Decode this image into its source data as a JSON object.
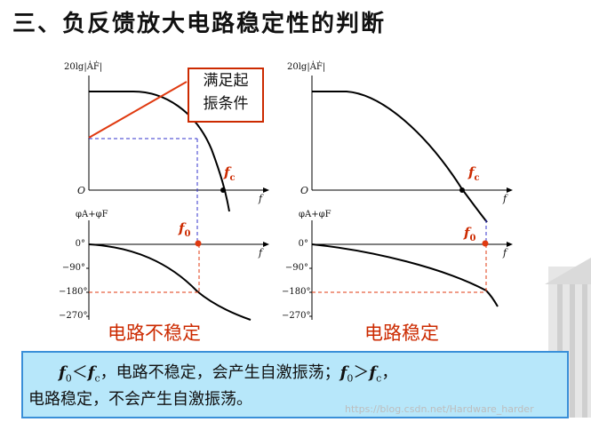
{
  "title": "三、负反馈放大电路稳定性的判断",
  "left": {
    "mag_label": "20lg|ȦḞ|",
    "phase_label": "φA+φF",
    "origin": "O",
    "f_axis": "f",
    "fc": "f",
    "fc_sub": "c",
    "f0": "f",
    "f0_sub": "0",
    "ticks": [
      "0°",
      "−90°",
      "−180°",
      "−270°"
    ],
    "callout_line1": "满足起",
    "callout_line2": "振条件",
    "status": "电路不稳定"
  },
  "right": {
    "mag_label": "20lg|ȦḞ|",
    "phase_label": "φA+φF",
    "origin": "O",
    "f_axis": "f",
    "fc": "f",
    "fc_sub": "c",
    "f0": "f",
    "f0_sub": "0",
    "ticks": [
      "0°",
      "−90°",
      "−180°",
      "−270°"
    ],
    "status": "电路稳定"
  },
  "summary": {
    "f0": "f",
    "f0_sub": "0",
    "lt": "＜",
    "fc": "f",
    "fc_sub": "c",
    "text1": "，电路不稳定，会产生自激振荡；",
    "f0b": "f",
    "f0b_sub": "0",
    "gt": "＞",
    "fcb": "f",
    "fcb_sub": "c",
    "end1": "，",
    "line2": "电路稳定，不会产生自激振荡。"
  },
  "watermark": "https://blog.csdn.net/Hardware_harder",
  "colors": {
    "accent": "#cc2a00",
    "dashed": "#3333cc",
    "box": "#b7e7fa"
  }
}
